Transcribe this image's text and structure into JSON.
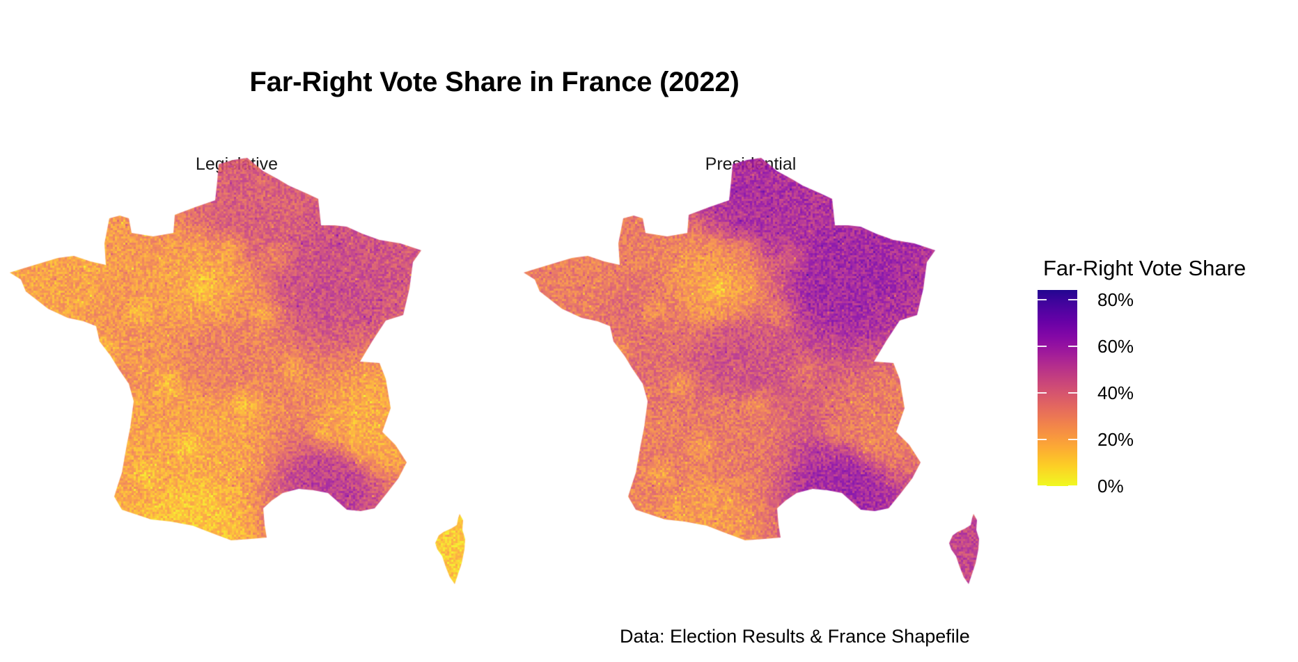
{
  "title": "Far-Right Vote Share in France (2022)",
  "caption": "Data: Election Results & France Shapefile",
  "chart_data": {
    "type": "choropleth",
    "title": "Far-Right Vote Share in France (2022)",
    "caption": "Data: Election Results & France Shapefile",
    "facets": [
      {
        "label": "Legislative",
        "description": "Commune-level far-right vote share, mostly 15-45%; yellow/orange (lower) in Brittany, southwest, Massif Central, Alps, Corsica; purple (higher) in northeast, Mediterranean coast, Gironde estuary",
        "regional_levels": {
          "northeast": 0.45,
          "north": 0.4,
          "paris_center": 0.2,
          "brittany": 0.2,
          "west": 0.24,
          "center": 0.3,
          "massif_central": 0.2,
          "southwest": 0.2,
          "pyrenees": 0.12,
          "alps": 0.18,
          "mediterranean": 0.5,
          "corsica": 0.1
        }
      },
      {
        "label": "Presidential",
        "description": "Commune-level far-right vote share, generally higher (30-60%); purple across north/northeast and Mediterranean; orange in Brittany, cities and southwest",
        "regional_levels": {
          "northeast": 0.58,
          "north": 0.55,
          "paris_center": 0.22,
          "brittany": 0.3,
          "west": 0.35,
          "center": 0.44,
          "massif_central": 0.32,
          "southwest": 0.3,
          "pyrenees": 0.22,
          "alps": 0.3,
          "mediterranean": 0.58,
          "corsica": 0.48
        }
      }
    ],
    "legend": {
      "title": "Far-Right Vote Share",
      "colormap": "plasma (reversed)",
      "range": [
        0,
        0.842
      ],
      "ticks": [
        {
          "value": 0.8,
          "label": "80%"
        },
        {
          "value": 0.6,
          "label": "60%"
        },
        {
          "value": 0.4,
          "label": "40%"
        },
        {
          "value": 0.2,
          "label": "20%"
        },
        {
          "value": 0.0,
          "label": "0%"
        }
      ],
      "placement": "right"
    },
    "colors": {
      "low": "#F0F921",
      "mid_low": "#FCA636",
      "mid": "#E16462",
      "mid_high": "#B12A90",
      "high": "#6A00A8",
      "top": "#1A0A8A"
    }
  }
}
